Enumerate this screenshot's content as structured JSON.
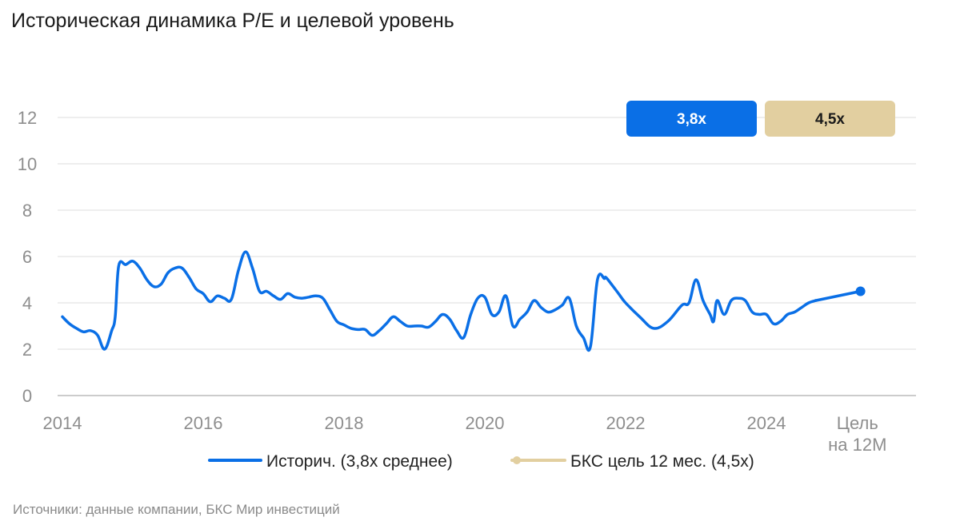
{
  "title": "Историческая динамика P/E и целевой уровень",
  "source": "Источники: данные компании, БКС Мир инвестиций",
  "colors": {
    "history": "#0a6fe6",
    "target": "#e2cfa0",
    "grid": "#dcdcdc",
    "axis": "#9a9a9a"
  },
  "badges": [
    {
      "label": "3,8x",
      "color": "#0a6fe6",
      "text_color": "#ffffff"
    },
    {
      "label": "4,5x",
      "color": "#e2cfa0",
      "text_color": "#1a1a1a"
    }
  ],
  "legend": [
    {
      "label": "Историч. (3,8x среднее)",
      "color": "#0a6fe6"
    },
    {
      "label": "БКС цель 12 мес. (4,5x)",
      "color": "#e2cfa0"
    }
  ],
  "chart_data": {
    "type": "line",
    "ylim": [
      0,
      13
    ],
    "yticks": [
      "0",
      "2",
      "4",
      "6",
      "8",
      "10",
      "12"
    ],
    "xticks": [
      "2014",
      "2016",
      "2018",
      "2020",
      "2022",
      "2024"
    ],
    "x_target_label": [
      "Цель",
      "на 12М"
    ],
    "grid": true,
    "legend_position": "bottom",
    "series": [
      {
        "name": "Историч. (3,8x среднее)",
        "x": [
          2014.0,
          2014.1,
          2014.2,
          2014.3,
          2014.4,
          2014.5,
          2014.6,
          2014.7,
          2014.75,
          2014.8,
          2014.9,
          2015.0,
          2015.1,
          2015.2,
          2015.3,
          2015.4,
          2015.5,
          2015.6,
          2015.7,
          2015.8,
          2015.9,
          2016.0,
          2016.1,
          2016.2,
          2016.3,
          2016.4,
          2016.5,
          2016.6,
          2016.7,
          2016.8,
          2016.9,
          2017.0,
          2017.1,
          2017.2,
          2017.3,
          2017.4,
          2017.5,
          2017.6,
          2017.7,
          2017.8,
          2017.9,
          2018.0,
          2018.1,
          2018.2,
          2018.3,
          2018.4,
          2018.5,
          2018.6,
          2018.7,
          2018.8,
          2018.9,
          2019.0,
          2019.1,
          2019.2,
          2019.3,
          2019.4,
          2019.5,
          2019.6,
          2019.7,
          2019.8,
          2019.9,
          2020.0,
          2020.1,
          2020.2,
          2020.3,
          2020.4,
          2020.5,
          2020.6,
          2020.7,
          2020.8,
          2020.9,
          2021.0,
          2021.1,
          2021.2,
          2021.3,
          2021.4,
          2021.5,
          2021.6,
          2021.7,
          2021.72,
          2021.8,
          2021.9,
          2022.0,
          2022.2,
          2022.4,
          2022.6,
          2022.8,
          2022.9,
          2023.0,
          2023.1,
          2023.2,
          2023.25,
          2023.3,
          2023.4,
          2023.5,
          2023.6,
          2023.7,
          2023.8,
          2023.9,
          2024.0,
          2024.1,
          2024.2,
          2024.3,
          2024.4,
          2024.5,
          2024.6,
          2024.7
        ],
        "values": [
          3.4,
          3.1,
          2.9,
          2.75,
          2.8,
          2.6,
          2.0,
          2.8,
          3.4,
          5.6,
          5.65,
          5.8,
          5.5,
          5.0,
          4.7,
          4.8,
          5.3,
          5.5,
          5.5,
          5.1,
          4.6,
          4.4,
          4.05,
          4.3,
          4.2,
          4.15,
          5.4,
          6.2,
          5.5,
          4.5,
          4.5,
          4.3,
          4.15,
          4.4,
          4.25,
          4.2,
          4.25,
          4.3,
          4.2,
          3.7,
          3.2,
          3.05,
          2.9,
          2.85,
          2.85,
          2.6,
          2.8,
          3.1,
          3.4,
          3.2,
          3.0,
          3.0,
          3.0,
          2.95,
          3.2,
          3.5,
          3.3,
          2.8,
          2.5,
          3.5,
          4.2,
          4.25,
          3.5,
          3.6,
          4.3,
          3.0,
          3.3,
          3.6,
          4.1,
          3.8,
          3.6,
          3.7,
          3.9,
          4.2,
          3.0,
          2.5,
          2.1,
          5.0,
          5.05,
          5.1,
          4.8,
          4.4,
          4.0,
          3.4,
          2.9,
          3.2,
          3.9,
          4.0,
          5.0,
          4.1,
          3.5,
          3.2,
          4.1,
          3.5,
          4.1,
          4.2,
          4.1,
          3.6,
          3.5,
          3.5,
          3.1,
          3.2,
          3.5,
          3.6,
          3.8,
          4.0,
          4.1
        ]
      },
      {
        "name": "БКС цель 12 мес. (4,5x)",
        "target": 4.5
      }
    ]
  }
}
